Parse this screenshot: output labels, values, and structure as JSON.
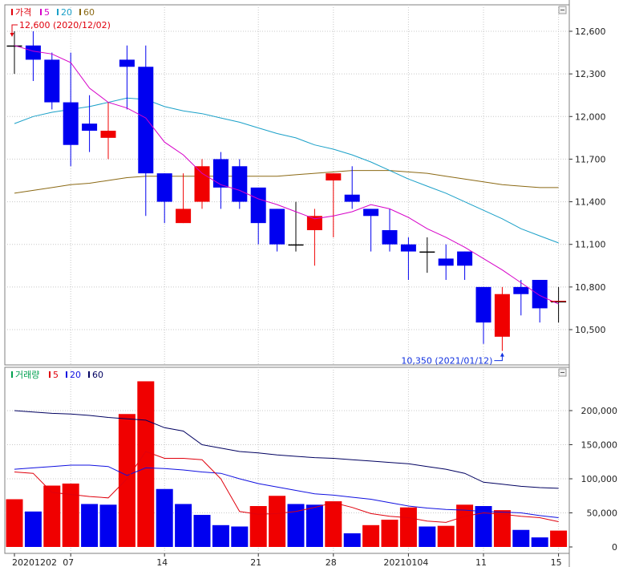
{
  "chart_data": [
    {
      "type": "candlestick",
      "legend": [
        {
          "label": "가격",
          "color": "#e0000c"
        },
        {
          "label": "5",
          "color": "#d600c8"
        },
        {
          "label": "20",
          "color": "#1aa0c8"
        },
        {
          "label": "60",
          "color": "#8b6914"
        }
      ],
      "ylim": [
        10300,
        12750
      ],
      "yticks": [
        "12,600",
        "12,300",
        "12,000",
        "11,700",
        "11,400",
        "11,100",
        "10,800",
        "10,500"
      ],
      "ytick_values": [
        12600,
        12300,
        12000,
        11700,
        11400,
        11100,
        10800,
        10500
      ],
      "candles": [
        {
          "o": 12500,
          "h": 12600,
          "l": 12300,
          "c": 12500
        },
        {
          "o": 12500,
          "h": 12600,
          "l": 12250,
          "c": 12400
        },
        {
          "o": 12400,
          "h": 12450,
          "l": 12050,
          "c": 12100
        },
        {
          "o": 12100,
          "h": 12450,
          "l": 11650,
          "c": 11800
        },
        {
          "o": 11950,
          "h": 12150,
          "l": 11750,
          "c": 11900
        },
        {
          "o": 11850,
          "h": 12100,
          "l": 11700,
          "c": 11900
        },
        {
          "o": 12400,
          "h": 12500,
          "l": 12050,
          "c": 12350
        },
        {
          "o": 12350,
          "h": 12500,
          "l": 11300,
          "c": 11600
        },
        {
          "o": 11600,
          "h": 11600,
          "l": 11250,
          "c": 11400
        },
        {
          "o": 11250,
          "h": 11600,
          "l": 11250,
          "c": 11350
        },
        {
          "o": 11400,
          "h": 11700,
          "l": 11350,
          "c": 11650
        },
        {
          "o": 11700,
          "h": 11750,
          "l": 11350,
          "c": 11500
        },
        {
          "o": 11650,
          "h": 11700,
          "l": 11350,
          "c": 11400
        },
        {
          "o": 11500,
          "h": 11500,
          "l": 11100,
          "c": 11250
        },
        {
          "o": 11350,
          "h": 11350,
          "l": 11050,
          "c": 11100
        },
        {
          "o": 11100,
          "h": 11400,
          "l": 11050,
          "c": 11100
        },
        {
          "o": 11200,
          "h": 11350,
          "l": 10950,
          "c": 11300
        },
        {
          "o": 11550,
          "h": 11600,
          "l": 11150,
          "c": 11600
        },
        {
          "o": 11450,
          "h": 11650,
          "l": 11350,
          "c": 11400
        },
        {
          "o": 11350,
          "h": 11350,
          "l": 11050,
          "c": 11300
        },
        {
          "o": 11200,
          "h": 11350,
          "l": 11050,
          "c": 11100
        },
        {
          "o": 11100,
          "h": 11150,
          "l": 10850,
          "c": 11050
        },
        {
          "o": 11050,
          "h": 11150,
          "l": 10900,
          "c": 11050
        },
        {
          "o": 11000,
          "h": 11100,
          "l": 10850,
          "c": 10950
        },
        {
          "o": 11050,
          "h": 11050,
          "l": 10850,
          "c": 10950
        },
        {
          "o": 10800,
          "h": 10800,
          "l": 10400,
          "c": 10550
        },
        {
          "o": 10450,
          "h": 10800,
          "l": 10350,
          "c": 10750
        },
        {
          "o": 10800,
          "h": 10850,
          "l": 10600,
          "c": 10750
        },
        {
          "o": 10850,
          "h": 10850,
          "l": 10550,
          "c": 10650
        },
        {
          "o": 10700,
          "h": 10800,
          "l": 10550,
          "c": 10700
        }
      ],
      "ma5": [
        12500,
        12460,
        12440,
        12380,
        12200,
        12100,
        12060,
        11990,
        11820,
        11730,
        11600,
        11520,
        11480,
        11420,
        11380,
        11330,
        11280,
        11300,
        11330,
        11380,
        11350,
        11290,
        11210,
        11150,
        11080,
        11000,
        10920,
        10830,
        10740,
        10680
      ],
      "ma20": [
        11950,
        12000,
        12030,
        12050,
        12070,
        12100,
        12130,
        12120,
        12070,
        12040,
        12020,
        11990,
        11960,
        11920,
        11880,
        11850,
        11800,
        11770,
        11730,
        11680,
        11620,
        11560,
        11510,
        11460,
        11400,
        11340,
        11280,
        11210,
        11160,
        11110
      ],
      "ma60": [
        11460,
        11480,
        11500,
        11520,
        11530,
        11550,
        11570,
        11580,
        11580,
        11580,
        11580,
        11580,
        11580,
        11580,
        11580,
        11590,
        11600,
        11610,
        11620,
        11620,
        11620,
        11610,
        11600,
        11580,
        11560,
        11540,
        11520,
        11510,
        11500,
        11500
      ],
      "annotations": [
        {
          "text": "12,600 (2020/12/02)",
          "index": 0,
          "value": 12600,
          "position": "high",
          "color": "#e0000c"
        },
        {
          "text": "10,350 (2021/01/12)",
          "index": 26,
          "value": 10350,
          "position": "low",
          "color": "#1030e0"
        }
      ],
      "last_price": 10700
    },
    {
      "type": "bar",
      "legend": [
        {
          "label": "거래량",
          "color": "#00a050"
        },
        {
          "label": "5",
          "color": "#e0000c"
        },
        {
          "label": "20",
          "color": "#1010e0"
        },
        {
          "label": "60",
          "color": "#000060"
        }
      ],
      "ylim": [
        0,
        250000
      ],
      "yticks": [
        "200,000",
        "150,000",
        "100,000",
        "50,000",
        "0"
      ],
      "ytick_values": [
        200000,
        150000,
        100000,
        50000,
        0
      ],
      "volumes": [
        70000,
        52000,
        90000,
        93000,
        63000,
        62000,
        195000,
        243000,
        85000,
        63000,
        47000,
        32000,
        30000,
        60000,
        75000,
        63000,
        62000,
        67000,
        20000,
        32000,
        40000,
        58000,
        30000,
        31000,
        62000,
        60000,
        54000,
        25000,
        14000,
        24000
      ],
      "volume_up": [
        true,
        false,
        true,
        true,
        false,
        false,
        true,
        true,
        false,
        false,
        false,
        false,
        false,
        true,
        true,
        false,
        false,
        true,
        false,
        true,
        true,
        true,
        false,
        true,
        true,
        false,
        true,
        false,
        false,
        true
      ],
      "vma5": [
        110000,
        108000,
        80000,
        77000,
        74000,
        72000,
        100000,
        140000,
        130000,
        130000,
        128000,
        100000,
        52000,
        48000,
        49000,
        52000,
        58000,
        65000,
        58000,
        49000,
        45000,
        43000,
        38000,
        36000,
        45000,
        50000,
        48000,
        45000,
        43000,
        37000
      ],
      "vma20": [
        114000,
        116000,
        118000,
        120000,
        120000,
        118000,
        105000,
        116000,
        115000,
        113000,
        110000,
        108000,
        100000,
        93000,
        88000,
        83000,
        78000,
        76000,
        73000,
        70000,
        65000,
        60000,
        57000,
        55000,
        54000,
        52000,
        51000,
        50000,
        46000,
        43000
      ],
      "vma60": [
        200000,
        198000,
        196000,
        195000,
        193000,
        190000,
        188000,
        186000,
        175000,
        170000,
        150000,
        145000,
        140000,
        138000,
        135000,
        133000,
        131000,
        130000,
        128000,
        126000,
        124000,
        122000,
        118000,
        114000,
        108000,
        95000,
        92000,
        89000,
        87000,
        86000
      ]
    }
  ],
  "xticks": [
    {
      "index": 0,
      "label": "20201202"
    },
    {
      "index": 3,
      "label": "07"
    },
    {
      "index": 8,
      "label": "14"
    },
    {
      "index": 13,
      "label": "21"
    },
    {
      "index": 17,
      "label": "28"
    },
    {
      "index": 21,
      "label": "20210104"
    },
    {
      "index": 25,
      "label": "11"
    },
    {
      "index": 29,
      "label": "15"
    }
  ],
  "colors": {
    "up": "#f00000",
    "down": "#0000f0",
    "grid": "#c8c8c8",
    "frame": "#808080"
  }
}
